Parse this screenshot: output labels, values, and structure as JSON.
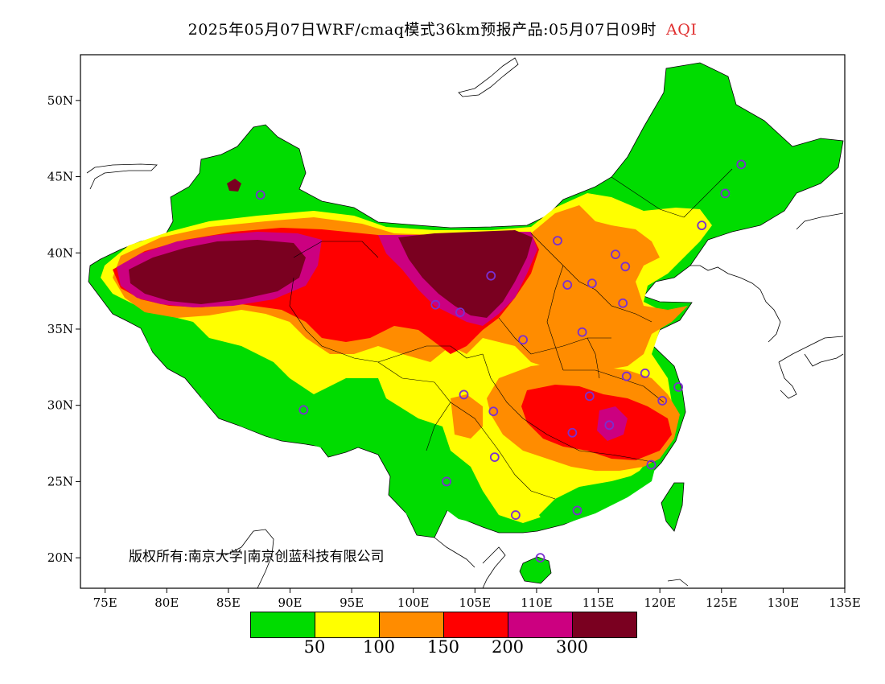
{
  "title": {
    "main": "2025年05月07日WRF/cmaq模式36km预报产品:05月07日09时",
    "variable": "AQI",
    "variable_color": "#e03030"
  },
  "copyright": "版权所有:南京大学|南京创蓝科技有限公司",
  "axes": {
    "lat_labels": [
      "50N",
      "45N",
      "40N",
      "35N",
      "30N",
      "25N",
      "20N"
    ],
    "lat_values": [
      50,
      45,
      40,
      35,
      30,
      25,
      20
    ],
    "lon_labels": [
      "75E",
      "80E",
      "85E",
      "90E",
      "95E",
      "100E",
      "105E",
      "110E",
      "115E",
      "120E",
      "125E",
      "130E",
      "135E"
    ],
    "lon_values": [
      75,
      80,
      85,
      90,
      95,
      100,
      105,
      110,
      115,
      120,
      125,
      130,
      135
    ],
    "lon_range": [
      73,
      135
    ],
    "lat_range": [
      18,
      53
    ]
  },
  "legend": {
    "colors": [
      "#00dc00",
      "#ffff00",
      "#ff8c00",
      "#ff0000",
      "#cc0080",
      "#7a0020"
    ],
    "labels": [
      "50",
      "100",
      "150",
      "200",
      "300"
    ]
  },
  "stations": [
    {
      "lon": 126.6,
      "lat": 45.8
    },
    {
      "lon": 125.3,
      "lat": 43.9
    },
    {
      "lon": 123.4,
      "lat": 41.8
    },
    {
      "lon": 87.6,
      "lat": 43.8
    },
    {
      "lon": 91.1,
      "lat": 29.7
    },
    {
      "lon": 101.8,
      "lat": 36.6
    },
    {
      "lon": 103.8,
      "lat": 36.1
    },
    {
      "lon": 106.3,
      "lat": 38.5
    },
    {
      "lon": 111.7,
      "lat": 40.8
    },
    {
      "lon": 116.4,
      "lat": 39.9
    },
    {
      "lon": 117.2,
      "lat": 39.1
    },
    {
      "lon": 114.5,
      "lat": 38.0
    },
    {
      "lon": 112.5,
      "lat": 37.9
    },
    {
      "lon": 117.0,
      "lat": 36.7
    },
    {
      "lon": 113.7,
      "lat": 34.8
    },
    {
      "lon": 108.9,
      "lat": 34.3
    },
    {
      "lon": 118.8,
      "lat": 32.1
    },
    {
      "lon": 117.3,
      "lat": 31.9
    },
    {
      "lon": 114.3,
      "lat": 30.6
    },
    {
      "lon": 120.2,
      "lat": 30.3
    },
    {
      "lon": 121.5,
      "lat": 31.2
    },
    {
      "lon": 115.9,
      "lat": 28.7
    },
    {
      "lon": 112.9,
      "lat": 28.2
    },
    {
      "lon": 119.3,
      "lat": 26.1
    },
    {
      "lon": 106.6,
      "lat": 26.6
    },
    {
      "lon": 102.7,
      "lat": 25.0
    },
    {
      "lon": 108.3,
      "lat": 22.8
    },
    {
      "lon": 113.3,
      "lat": 23.1
    },
    {
      "lon": 110.3,
      "lat": 20.0
    },
    {
      "lon": 104.1,
      "lat": 30.7
    },
    {
      "lon": 106.5,
      "lat": 29.6
    }
  ]
}
